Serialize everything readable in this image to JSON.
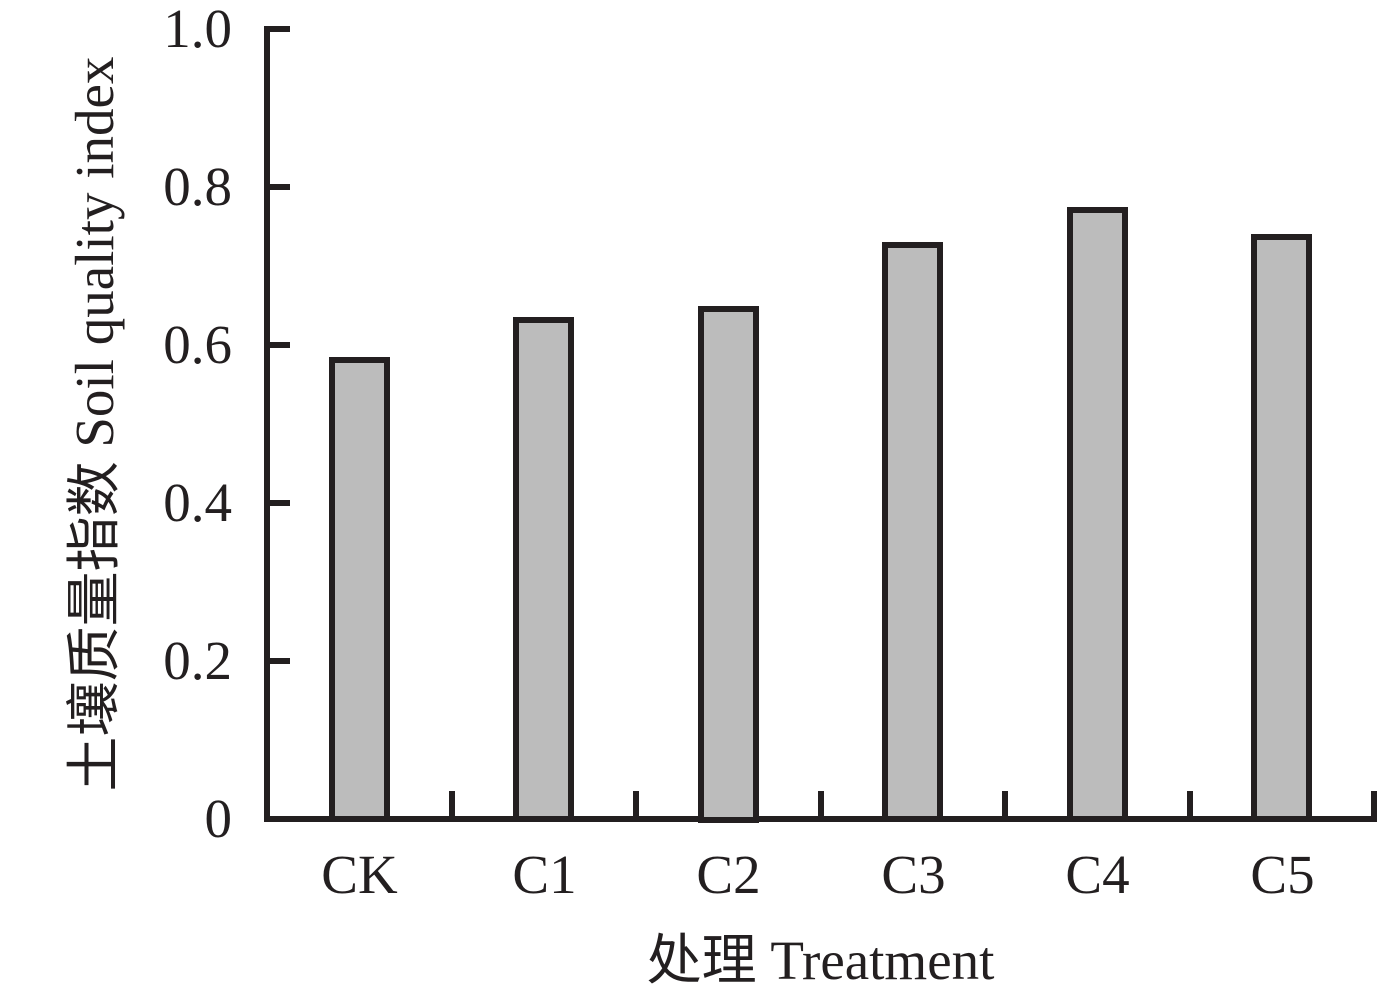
{
  "chart_data": {
    "type": "bar",
    "categories": [
      "CK",
      "C1",
      "C2",
      "C3",
      "C4",
      "C5"
    ],
    "values": [
      0.585,
      0.635,
      0.65,
      0.73,
      0.775,
      0.74
    ],
    "title": "",
    "xlabel": "处理 Treatment",
    "ylabel": "土壤质量指数 Soil quality index",
    "ylim": [
      0,
      1.0
    ],
    "yticks": [
      0,
      0.2,
      0.4,
      0.6,
      0.8,
      1.0
    ],
    "ytick_labels": [
      "0",
      "0.2",
      "0.4",
      "0.6",
      "0.8",
      "1.0"
    ],
    "grid": false,
    "legend": "none",
    "bar_fill_color": "#bcbcbc",
    "bar_border_color": "#231f20",
    "axis_color": "#231f20",
    "background_color": "#ffffff"
  }
}
